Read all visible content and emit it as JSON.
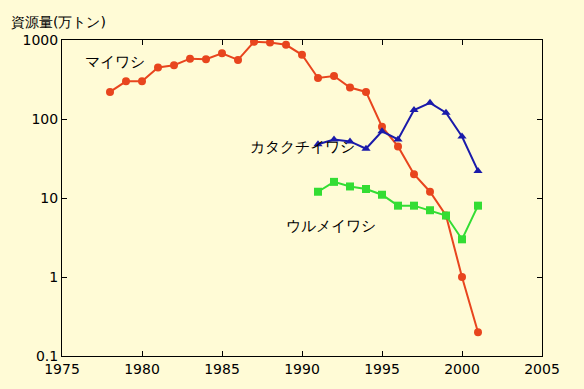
{
  "chart_data": {
    "type": "line",
    "y_label": "資源量(万トン)",
    "log": "y",
    "grid": false,
    "xlim": [
      1975,
      2005
    ],
    "xticks": [
      1975,
      1980,
      1985,
      1990,
      1995,
      2000,
      2005
    ],
    "ylim": [
      0.1,
      1000
    ],
    "yticks": [
      0.1,
      1,
      10,
      100,
      1000
    ],
    "series": [
      {
        "name": "マイワシ",
        "color": "#e8451e",
        "marker": "circle",
        "x": [
          1978,
          1979,
          1980,
          1981,
          1982,
          1983,
          1984,
          1985,
          1986,
          1987,
          1988,
          1989,
          1990,
          1991,
          1992,
          1993,
          1994,
          1995,
          1996,
          1997,
          1998,
          1999,
          2000,
          2001
        ],
        "values": [
          220,
          300,
          300,
          450,
          480,
          580,
          570,
          680,
          560,
          950,
          930,
          870,
          650,
          330,
          350,
          250,
          220,
          80,
          45,
          20,
          12,
          6,
          1,
          0.2
        ]
      },
      {
        "name": "カタクチイワシ",
        "color": "#1a1aaa",
        "marker": "triangle-up",
        "x": [
          1991,
          1992,
          1993,
          1994,
          1995,
          1996,
          1997,
          1998,
          1999,
          2000,
          2001
        ],
        "values": [
          48,
          55,
          52,
          42,
          70,
          55,
          130,
          160,
          120,
          60,
          22
        ]
      },
      {
        "name": "ウルメイワシ",
        "color": "#33dd33",
        "marker": "square",
        "x": [
          1991,
          1992,
          1993,
          1994,
          1995,
          1996,
          1997,
          1998,
          1999,
          2000,
          2001
        ],
        "values": [
          12,
          16,
          14,
          13,
          11,
          8,
          8,
          7,
          6,
          3,
          8
        ]
      }
    ]
  }
}
